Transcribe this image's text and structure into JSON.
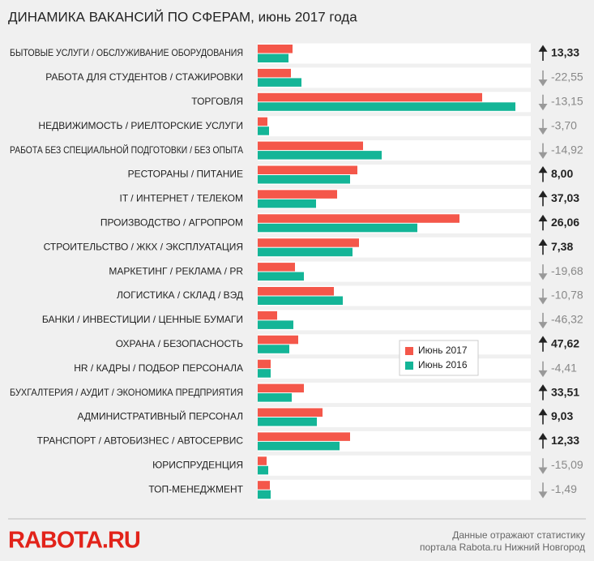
{
  "chart_data": {
    "type": "bar",
    "orientation": "horizontal",
    "title": "ДИНАМИКА ВАКАНСИЙ ПО СФЕРАМ, июнь 2017 года",
    "categories": [
      "БЫТОВЫЕ УСЛУГИ / ОБСЛУЖИВАНИЕ ОБОРУДОВАНИЯ",
      "РАБОТА ДЛЯ СТУДЕНТОВ / СТАЖИРОВКИ",
      "ТОРГОВЛЯ",
      "НЕДВИЖИМОСТЬ / РИЕЛТОРСКИЕ УСЛУГИ",
      "РАБОТА БЕЗ СПЕЦИАЛЬНОЙ ПОДГОТОВКИ / БЕЗ ОПЫТА",
      "РЕСТОРАНЫ / ПИТАНИЕ",
      "IT / ИНТЕРНЕТ / ТЕЛЕКОМ",
      "ПРОИЗВОДСТВО / АГРОПРОМ",
      "СТРОИТЕЛЬСТВО / ЖКХ / ЭКСПЛУАТАЦИЯ",
      "МАРКЕТИНГ / РЕКЛАМА / PR",
      "ЛОГИСТИКА / СКЛАД / ВЭД",
      "БАНКИ / ИНВЕСТИЦИИ / ЦЕННЫЕ БУМАГИ",
      "ОХРАНА / БЕЗОПАСНОСТЬ",
      "HR / КАДРЫ / ПОДБОР ПЕРСОНАЛА",
      "БУХГАЛТЕРИЯ / АУДИТ / ЭКОНОМИКА ПРЕДПРИЯТИЯ",
      "АДМИНИСТРАТИВНЫЙ ПЕРСОНАЛ",
      "ТРАНСПОРТ / АВТОБИЗНЕС / АВТОСЕРВИС",
      "ЮРИСПРУДЕНЦИЯ",
      "ТОП-МЕНЕДЖМЕНТ"
    ],
    "series": [
      {
        "name": "Июнь 2017",
        "color": "#f4574a",
        "values": [
          43,
          41,
          277,
          12,
          130,
          123,
          98,
          249,
          125,
          46,
          94,
          24,
          50,
          16,
          57,
          80,
          114,
          11,
          15
        ]
      },
      {
        "name": "Июнь 2016",
        "color": "#14b597",
        "values": [
          38,
          54,
          318,
          14,
          153,
          114,
          72,
          197,
          117,
          57,
          105,
          44,
          39,
          16,
          42,
          73,
          101,
          13,
          16
        ]
      }
    ],
    "change": {
      "values": [
        13.33,
        -22.55,
        -13.15,
        -3.7,
        -14.92,
        8.0,
        37.03,
        26.06,
        7.38,
        -19.68,
        -10.78,
        -46.32,
        47.62,
        -4.41,
        33.51,
        9.03,
        12.33,
        -15.09,
        -1.49
      ],
      "value_labels": [
        "13,33",
        "-22,55",
        "-13,15",
        "-3,70",
        "-14,92",
        "8,00",
        "37,03",
        "26,06",
        "7,38",
        "-19,68",
        "-10,78",
        "-46,32",
        "47,62",
        "-4,41",
        "33,51",
        "9,03",
        "12,33",
        "-15,09",
        "-1,49"
      ]
    }
  },
  "footer": {
    "logo": "RABOTA.RU",
    "note": [
      "Данные отражают статистику",
      "портала Rabota.ru Нижний Новгород"
    ]
  }
}
